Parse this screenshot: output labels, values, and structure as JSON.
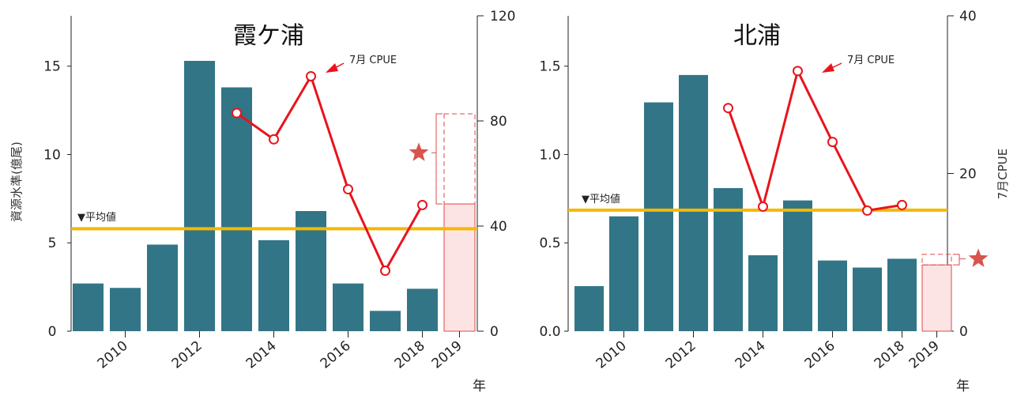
{
  "charts": [
    {
      "title": "霞ケ浦",
      "ylabel_left": "資源水準(億尾)",
      "ylabel_right": "",
      "xlabel": "年",
      "avg_label": "▼平均値",
      "cpue_label": "7月 CPUE",
      "chart_data": {
        "type": "bar",
        "x": [
          2009,
          2010,
          2011,
          2012,
          2013,
          2014,
          2015,
          2016,
          2017,
          2018,
          2019
        ],
        "x_tick_labels": [
          "2010",
          "2012",
          "2014",
          "2016",
          "2018",
          "2019"
        ],
        "x_tick_values": [
          2010,
          2012,
          2014,
          2016,
          2018,
          2019
        ],
        "bars": [
          2.7,
          2.45,
          4.9,
          15.3,
          13.8,
          5.15,
          6.8,
          2.7,
          1.15,
          2.4,
          null
        ],
        "projection_2019": {
          "solid": 7.2,
          "dashed_upper": 12.3,
          "star": 10.1
        },
        "average": 5.8,
        "left_ylim": [
          0,
          17.85
        ],
        "left_ticks": [
          "0",
          "5",
          "10",
          "15"
        ],
        "left_tick_values": [
          0,
          5,
          10,
          15
        ],
        "right_ylim": [
          0,
          120
        ],
        "right_ticks": [
          "0",
          "40",
          "80",
          "120"
        ],
        "right_tick_values": [
          0,
          40,
          80,
          120
        ],
        "cpue_series": {
          "name": "7月 CPUE",
          "x": [
            2013,
            2014,
            2015,
            2016,
            2017,
            2018
          ],
          "values": [
            83,
            73,
            97,
            54,
            23,
            48
          ]
        },
        "colors": {
          "bar": "#327587",
          "avg": "#f5b800",
          "cpue": "#e8141c",
          "projection": "#e04a4a",
          "projection_fill": "#fde4e4",
          "star": "#d9534f"
        }
      }
    },
    {
      "title": "北浦",
      "ylabel_left": "",
      "ylabel_right": "7月CPUE",
      "xlabel": "年",
      "avg_label": "▼平均値",
      "cpue_label": "7月 CPUE",
      "chart_data": {
        "type": "bar",
        "x": [
          2009,
          2010,
          2011,
          2012,
          2013,
          2014,
          2015,
          2016,
          2017,
          2018,
          2019
        ],
        "x_tick_labels": [
          "2010",
          "2012",
          "2014",
          "2016",
          "2018",
          "2019"
        ],
        "x_tick_values": [
          2010,
          2012,
          2014,
          2016,
          2018,
          2019
        ],
        "bars": [
          0.255,
          0.65,
          1.295,
          1.45,
          0.81,
          0.43,
          0.74,
          0.4,
          0.36,
          0.41,
          null
        ],
        "projection_2019": {
          "solid": 0.375,
          "dashed_upper": 0.435,
          "star": 0.41
        },
        "average": 0.685,
        "left_ylim": [
          0,
          1.785
        ],
        "left_ticks": [
          "0.0",
          "0.5",
          "1.0",
          "1.5"
        ],
        "left_tick_values": [
          0,
          0.5,
          1.0,
          1.5
        ],
        "right_ylim": [
          0,
          40
        ],
        "right_ticks": [
          "0",
          "20",
          "40"
        ],
        "right_tick_values": [
          0,
          20,
          40
        ],
        "cpue_series": {
          "name": "7月 CPUE",
          "x": [
            2013,
            2014,
            2015,
            2016,
            2017,
            2018
          ],
          "values": [
            28.3,
            15.8,
            33.0,
            24.0,
            15.3,
            16.0
          ]
        },
        "colors": {
          "bar": "#327587",
          "avg": "#f5b800",
          "cpue": "#e8141c",
          "projection": "#e04a4a",
          "projection_fill": "#fde4e4",
          "star": "#d9534f"
        }
      }
    }
  ]
}
